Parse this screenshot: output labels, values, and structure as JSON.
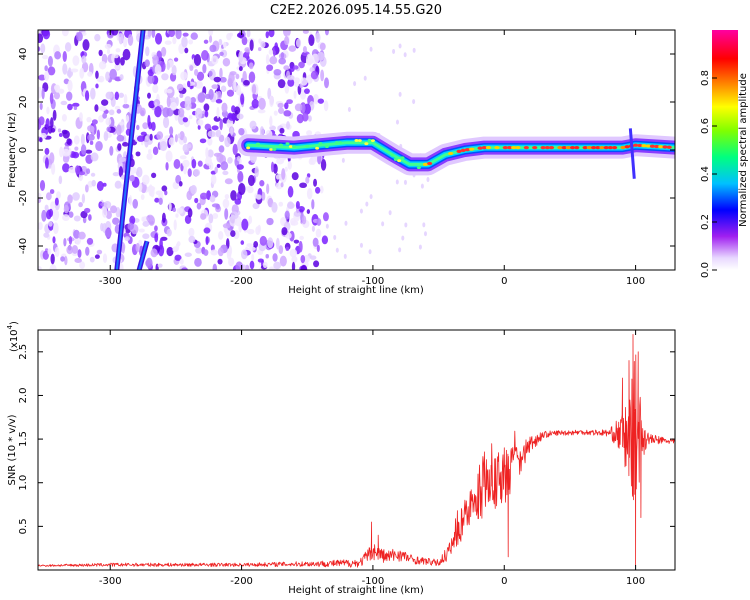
{
  "page_title": "C2E2.2026.095.14.55.G20",
  "chart_data": [
    {
      "type": "heatmap",
      "xlabel": "Height of straight line (km)",
      "ylabel": "Frequency (Hz)",
      "xlim": [
        -355,
        130
      ],
      "ylim": [
        -50,
        50
      ],
      "xticks": [
        -300,
        -200,
        -100,
        0,
        100
      ],
      "xtick_labels": [
        "-300",
        "-200",
        "-100",
        "0",
        "100"
      ],
      "yticks": [
        -40,
        -20,
        0,
        20,
        40
      ],
      "ytick_labels": [
        "-40",
        "-20",
        "0",
        "20",
        "40"
      ],
      "colorbar": {
        "label": "Normalized spectral amplitude",
        "range": [
          0,
          1
        ],
        "ticks": [
          0,
          0.2,
          0.4,
          0.6,
          0.8
        ],
        "tick_labels": [
          "0.0",
          "0.2",
          "0.4",
          "0.6",
          "0.8"
        ],
        "colors": [
          "#ffffff",
          "#a020f0",
          "#0000ff",
          "#00c0ff",
          "#00ff80",
          "#80ff00",
          "#ffff00",
          "#ff8000",
          "#ff0000",
          "#ff00a0"
        ]
      },
      "features": {
        "diagonal_streak": [
          [
            -295,
            -50
          ],
          [
            -275,
            50
          ]
        ],
        "diagonal_streak_2": [
          [
            -278,
            -50
          ],
          [
            -272,
            -38
          ]
        ],
        "noise_region_x": [
          -355,
          -135
        ],
        "tone_ridge": [
          [
            -195,
            2
          ],
          [
            -160,
            1
          ],
          [
            -120,
            3
          ],
          [
            -100,
            3
          ],
          [
            -85,
            -2
          ],
          [
            -72,
            -6
          ],
          [
            -58,
            -6
          ],
          [
            -45,
            -2
          ],
          [
            -30,
            0
          ],
          [
            -15,
            1
          ],
          [
            0,
            1
          ],
          [
            20,
            1
          ],
          [
            60,
            1
          ],
          [
            90,
            1
          ],
          [
            100,
            2
          ],
          [
            130,
            1
          ]
        ]
      }
    },
    {
      "type": "line",
      "xlabel": "Height of straight line (km)",
      "ylabel": "SNR (10 * v/v)",
      "y_multiplier": "(x10",
      "y_multiplier_exp": "4",
      "xlim": [
        -355,
        130
      ],
      "ylim": [
        0,
        2.75
      ],
      "xticks": [
        -300,
        -200,
        -100,
        0,
        100
      ],
      "xtick_labels": [
        "-300",
        "-200",
        "-100",
        "0",
        "100"
      ],
      "yticks": [
        0.5,
        1.0,
        1.5,
        2.0,
        2.5
      ],
      "ytick_labels": [
        "0.5",
        "1.0",
        "1.5",
        "2.0",
        "2.5"
      ],
      "color": "#ee2222",
      "envelope_x": [
        -355,
        -300,
        -200,
        -150,
        -110,
        -100,
        -90,
        -80,
        -70,
        -60,
        -50,
        -40,
        -30,
        -20,
        -10,
        0,
        10,
        20,
        30,
        40,
        60,
        80,
        90,
        95,
        100,
        105,
        110,
        130
      ],
      "envelope_y": [
        0.05,
        0.06,
        0.06,
        0.07,
        0.08,
        0.22,
        0.15,
        0.18,
        0.12,
        0.1,
        0.08,
        0.25,
        0.6,
        0.8,
        0.95,
        1.05,
        1.25,
        1.45,
        1.55,
        1.57,
        1.58,
        1.57,
        1.55,
        1.45,
        1.6,
        1.55,
        1.5,
        1.47
      ],
      "noise": [
        0.01,
        0.02,
        0.02,
        0.03,
        0.05,
        0.1,
        0.08,
        0.08,
        0.05,
        0.04,
        0.04,
        0.12,
        0.2,
        0.25,
        0.3,
        0.3,
        0.22,
        0.1,
        0.04,
        0.03,
        0.03,
        0.04,
        0.25,
        0.55,
        0.9,
        0.3,
        0.06,
        0.03
      ],
      "spikes": [
        [
          -101,
          0.55
        ],
        [
          -96,
          0.4
        ],
        [
          -35,
          0.55
        ],
        [
          -30,
          0.8
        ],
        [
          -20,
          1.1
        ],
        [
          -10,
          1.2
        ],
        [
          0,
          1.4
        ],
        [
          3,
          0.15
        ],
        [
          90,
          2.2
        ],
        [
          95,
          2.4
        ],
        [
          98,
          2.7
        ],
        [
          100,
          0.05
        ],
        [
          102,
          2.5
        ],
        [
          104,
          0.6
        ]
      ]
    }
  ]
}
